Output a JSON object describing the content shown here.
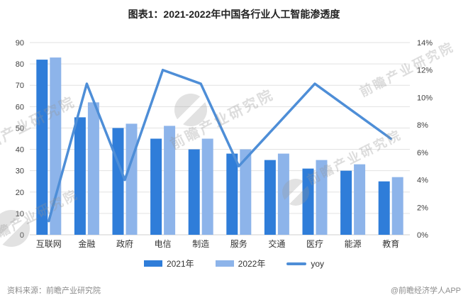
{
  "title": "图表1：2021-2022年中国各行业人工智能渗透度",
  "footer": {
    "source": "资料来源：前瞻产业研究院",
    "credit": "@前瞻经济学人APP"
  },
  "watermark": {
    "text": "前瞻产业研究院"
  },
  "colors": {
    "bar_2021": "#2f7dd9",
    "bar_2022": "#8db4ea",
    "line_yoy": "#4e8ed7",
    "grid": "#e2e2e2",
    "axis_line": "#cfcfcf",
    "axis_text": "#404040",
    "category_text": "#333333",
    "title_text": "#222222",
    "footer_text": "#8c8c8c",
    "background": "#ffffff"
  },
  "chart_data": {
    "type": "bar+line",
    "title": "图表1：2021-2022年中国各行业人工智能渗透度",
    "categories": [
      "互联网",
      "金融",
      "政府",
      "电信",
      "制造",
      "服务",
      "交通",
      "医疗",
      "能源",
      "教育"
    ],
    "series": [
      {
        "name": "2021年",
        "type": "bar",
        "axis": "left",
        "values": [
          82,
          55,
          50,
          45,
          40,
          38,
          35,
          31,
          30,
          25
        ]
      },
      {
        "name": "2022年",
        "type": "bar",
        "axis": "left",
        "values": [
          83,
          62,
          52,
          51,
          45,
          40,
          38,
          35,
          33,
          27
        ]
      },
      {
        "name": "yoy",
        "type": "line",
        "axis": "right",
        "unit": "%",
        "values": [
          1,
          11,
          4,
          12,
          11,
          5,
          8,
          11,
          9,
          7
        ]
      }
    ],
    "left_axis": {
      "min": 0,
      "max": 90,
      "step": 10,
      "ticks": [
        "0",
        "10",
        "20",
        "30",
        "40",
        "50",
        "60",
        "70",
        "80",
        "90"
      ]
    },
    "right_axis": {
      "min": 0,
      "max": 14,
      "step": 2,
      "ticks": [
        "0%",
        "2%",
        "4%",
        "6%",
        "8%",
        "10%",
        "12%",
        "14%"
      ]
    },
    "grid": true,
    "legend_position": "bottom",
    "xlabel": "",
    "ylabel": ""
  }
}
